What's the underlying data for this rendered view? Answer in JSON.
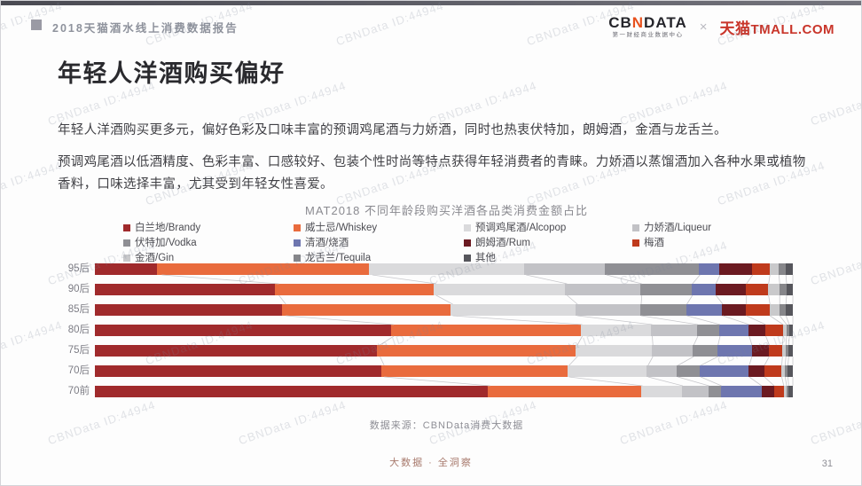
{
  "header": {
    "report_title": "2018天猫酒水线上消费数据报告",
    "cbndata_logo": "CBNDATA",
    "cbndata_subtitle": "第一财经商业数据中心",
    "separator": "×",
    "tmall_cn": "天猫",
    "tmall_en": "TMALL.COM"
  },
  "page_title": "年轻人洋酒购买偏好",
  "paragraphs": {
    "p1": "年轻人洋酒购买更多元，偏好色彩及口味丰富的预调鸡尾酒与力娇酒，同时也热衷伏特加，朗姆酒，金酒与龙舌兰。",
    "p2": "预调鸡尾酒以低酒精度、色彩丰富、口感较好、包装个性时尚等特点获得年轻消费者的青睐。力娇酒以蒸馏酒加入各种水果或植物香料，口味选择丰富，尤其受到年轻女性喜爱。"
  },
  "chart_data": {
    "type": "bar",
    "stacked": true,
    "orientation": "horizontal",
    "title": "MAT2018 不同年龄段购买洋酒各品类消费金额占比",
    "unit": "percent_of_row_total",
    "xlim": [
      0,
      100
    ],
    "grid": false,
    "legend_position": "top",
    "categories": [
      "95后",
      "90后",
      "85后",
      "80后",
      "75后",
      "70后",
      "70前"
    ],
    "series": [
      {
        "name": "白兰地/Brandy",
        "color": "#a02a2c",
        "values": [
          8.9,
          25.8,
          26.8,
          42.4,
          40.4,
          41.0,
          56.3
        ]
      },
      {
        "name": "威士忌/Whiskey",
        "color": "#e96b3d",
        "values": [
          30.4,
          22.7,
          24.1,
          27.2,
          28.5,
          26.7,
          22.0
        ]
      },
      {
        "name": "预调鸡尾酒/Alcopop",
        "color": "#dadadc",
        "values": [
          22.2,
          18.9,
          18.0,
          10.1,
          10.9,
          11.4,
          5.8
        ]
      },
      {
        "name": "力娇酒/Liqueur",
        "color": "#c2c2c6",
        "values": [
          11.6,
          10.8,
          9.2,
          6.6,
          5.9,
          4.3,
          3.8
        ]
      },
      {
        "name": "伏特加/Vodka",
        "color": "#8f8f94",
        "values": [
          13.5,
          7.3,
          6.6,
          3.2,
          3.5,
          3.3,
          1.8
        ]
      },
      {
        "name": "清酒/烧酒",
        "color": "#6e76af",
        "values": [
          2.9,
          3.4,
          5.2,
          4.2,
          4.9,
          7.0,
          5.8
        ]
      },
      {
        "name": "朗姆酒/Rum",
        "color": "#6b1a21",
        "values": [
          4.7,
          4.4,
          3.4,
          2.4,
          2.5,
          2.2,
          1.8
        ]
      },
      {
        "name": "梅酒",
        "color": "#bf3a1c",
        "values": [
          2.5,
          3.2,
          3.4,
          2.5,
          1.9,
          2.5,
          1.4
        ]
      },
      {
        "name": "金酒/Gin",
        "color": "#c9c9cb",
        "values": [
          1.3,
          1.6,
          1.4,
          0.5,
          0.5,
          0.5,
          0.4
        ]
      },
      {
        "name": "龙舌兰/Tequila",
        "color": "#86868a",
        "values": [
          1.0,
          1.0,
          0.9,
          0.4,
          0.4,
          0.4,
          0.3
        ]
      },
      {
        "name": "其他",
        "color": "#56565c",
        "values": [
          1.0,
          0.9,
          1.0,
          0.5,
          0.6,
          0.7,
          0.6
        ]
      }
    ],
    "source": "数据来源：CBNData消费大数据"
  },
  "footer": {
    "slogan": "大数据 · 全洞察",
    "page_number": "31"
  },
  "watermark_text": "CBNData ID:44944"
}
